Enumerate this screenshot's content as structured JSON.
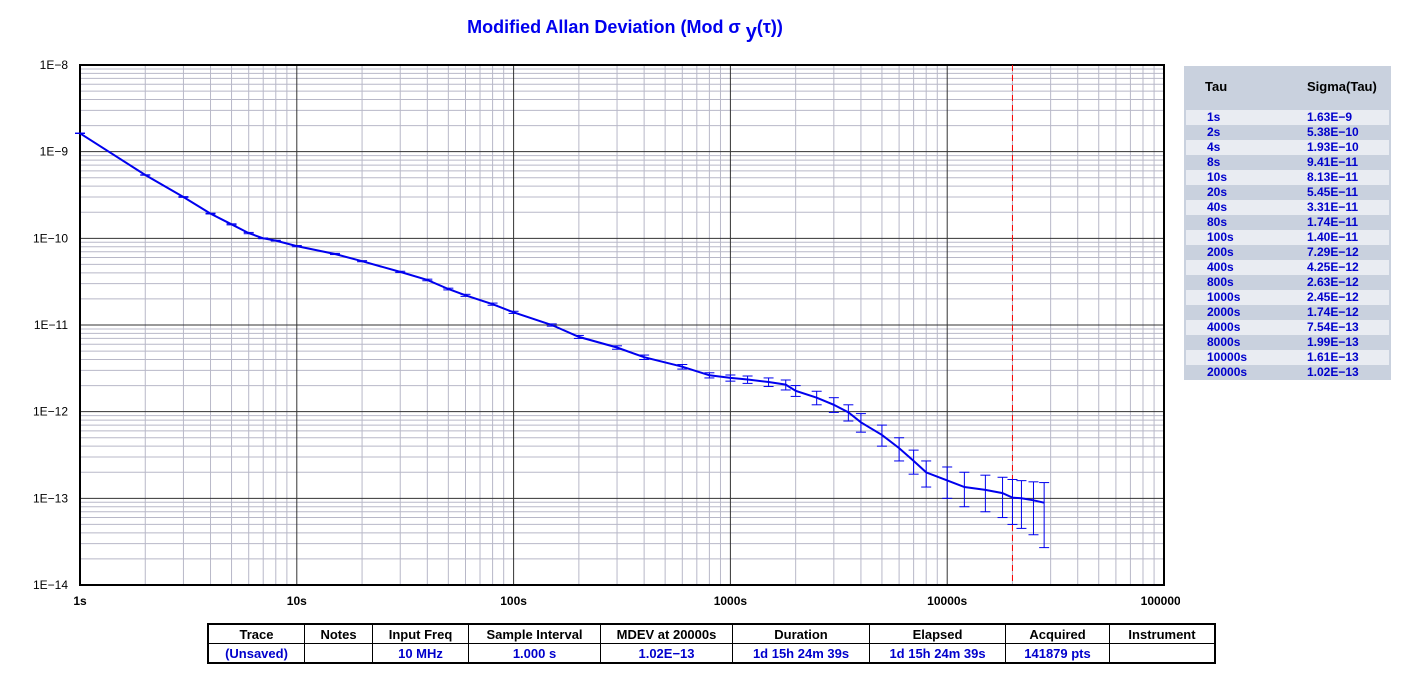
{
  "title": {
    "main": "Modified Allan Deviation (Mod σ ",
    "sub": "y",
    "tail": "(τ))"
  },
  "colors": {
    "trace": "#0000ee",
    "text_blue": "#0000cc",
    "marker": "#ff0000",
    "panel": "#c9d1de"
  },
  "chart_data": {
    "type": "line",
    "title": "Modified Allan Deviation (Mod σ y(τ))",
    "xlabel": "",
    "ylabel": "",
    "x_scale": "log",
    "y_scale": "log",
    "xlim": [
      1,
      100000
    ],
    "ylim": [
      1e-14,
      1e-08
    ],
    "x_tick_labels": [
      "1s",
      "10s",
      "100s",
      "1000s",
      "10000s",
      "100000s"
    ],
    "y_tick_labels": [
      "1E−8",
      "1E−9",
      "1E−10",
      "1E−11",
      "1E−12",
      "1E−13",
      "1E−14"
    ],
    "grid": true,
    "marker_line_tau": 20000,
    "series": [
      {
        "tau": [
          1,
          2,
          3,
          4,
          5,
          6,
          7,
          8,
          10,
          15,
          20,
          30,
          40,
          50,
          60,
          80,
          100,
          150,
          200,
          300,
          400,
          600,
          800,
          1000,
          1200,
          1500,
          1800,
          2000,
          2500,
          3000,
          3500,
          4000,
          5000,
          6000,
          7000,
          8000,
          10000,
          12000,
          15000,
          18000,
          20000,
          22000,
          25000,
          28000
        ],
        "sigma": [
          1.63e-09,
          5.38e-10,
          3e-10,
          1.93e-10,
          1.45e-10,
          1.15e-10,
          1e-10,
          9.41e-11,
          8.13e-11,
          6.6e-11,
          5.45e-11,
          4.1e-11,
          3.31e-11,
          2.6e-11,
          2.2e-11,
          1.74e-11,
          1.4e-11,
          1e-11,
          7.29e-12,
          5.5e-12,
          4.25e-12,
          3.3e-12,
          2.63e-12,
          2.45e-12,
          2.35e-12,
          2.2e-12,
          2.05e-12,
          1.74e-12,
          1.45e-12,
          1.2e-12,
          9.8e-13,
          7.54e-13,
          5.4e-13,
          3.8e-13,
          2.7e-13,
          1.99e-13,
          1.61e-13,
          1.35e-13,
          1.25e-13,
          1.15e-13,
          1.02e-13,
          1e-13,
          9.5e-14,
          8.9e-14
        ],
        "err_lo": [
          1.62e-09,
          5.35e-10,
          2.97e-10,
          1.91e-10,
          1.43e-10,
          1.13e-10,
          9.9e-11,
          9.3e-11,
          8e-11,
          6.5e-11,
          5.37e-11,
          4.03e-11,
          3.24e-11,
          2.54e-11,
          2.14e-11,
          1.69e-11,
          1.36e-11,
          9.7e-12,
          7e-12,
          5.25e-12,
          4e-12,
          3.1e-12,
          2.45e-12,
          2.25e-12,
          2.12e-12,
          1.95e-12,
          1.78e-12,
          1.5e-12,
          1.2e-12,
          9.8e-13,
          7.8e-13,
          5.8e-13,
          4e-13,
          2.7e-13,
          1.9e-13,
          1.35e-13,
          1e-13,
          8e-14,
          7e-14,
          6e-14,
          5e-14,
          4.5e-14,
          3.8e-14,
          2.7e-14
        ],
        "err_hi": [
          1.64e-09,
          5.41e-10,
          3.03e-10,
          1.95e-10,
          1.47e-10,
          1.17e-10,
          1.01e-10,
          9.5e-11,
          8.26e-11,
          6.7e-11,
          5.53e-11,
          4.17e-11,
          3.38e-11,
          2.66e-11,
          2.26e-11,
          1.79e-11,
          1.44e-11,
          1.03e-11,
          7.58e-12,
          5.75e-12,
          4.5e-12,
          3.5e-12,
          2.81e-12,
          2.65e-12,
          2.58e-12,
          2.45e-12,
          2.32e-12,
          2e-12,
          1.72e-12,
          1.45e-12,
          1.2e-12,
          9.5e-13,
          7e-13,
          5e-13,
          3.6e-13,
          2.7e-13,
          2.3e-13,
          2e-13,
          1.85e-13,
          1.75e-13,
          1.65e-13,
          1.6e-13,
          1.55e-13,
          1.52e-13
        ]
      }
    ]
  },
  "tau_table": {
    "header_tau": "Tau",
    "header_sigma": "Sigma(Tau)",
    "rows": [
      {
        "tau": "1s",
        "sigma": "1.63E−9"
      },
      {
        "tau": "2s",
        "sigma": "5.38E−10"
      },
      {
        "tau": "4s",
        "sigma": "1.93E−10"
      },
      {
        "tau": "8s",
        "sigma": "9.41E−11"
      },
      {
        "tau": "10s",
        "sigma": "8.13E−11"
      },
      {
        "tau": "20s",
        "sigma": "5.45E−11"
      },
      {
        "tau": "40s",
        "sigma": "3.31E−11"
      },
      {
        "tau": "80s",
        "sigma": "1.74E−11"
      },
      {
        "tau": "100s",
        "sigma": "1.40E−11"
      },
      {
        "tau": "200s",
        "sigma": "7.29E−12"
      },
      {
        "tau": "400s",
        "sigma": "4.25E−12"
      },
      {
        "tau": "800s",
        "sigma": "2.63E−12"
      },
      {
        "tau": "1000s",
        "sigma": "2.45E−12"
      },
      {
        "tau": "2000s",
        "sigma": "1.74E−12"
      },
      {
        "tau": "4000s",
        "sigma": "7.54E−13"
      },
      {
        "tau": "8000s",
        "sigma": "1.99E−13"
      },
      {
        "tau": "10000s",
        "sigma": "1.61E−13"
      },
      {
        "tau": "20000s",
        "sigma": "1.02E−13"
      }
    ]
  },
  "status_table": {
    "headers": [
      "Trace",
      "Notes",
      "Input Freq",
      "Sample Interval",
      "MDEV at 20000s",
      "Duration",
      "Elapsed",
      "Acquired",
      "Instrument"
    ],
    "values": [
      "(Unsaved)",
      "",
      "10 MHz",
      "1.000 s",
      "1.02E−13",
      "1d 15h 24m 39s",
      "1d 15h 24m 39s",
      "141879 pts",
      ""
    ]
  }
}
